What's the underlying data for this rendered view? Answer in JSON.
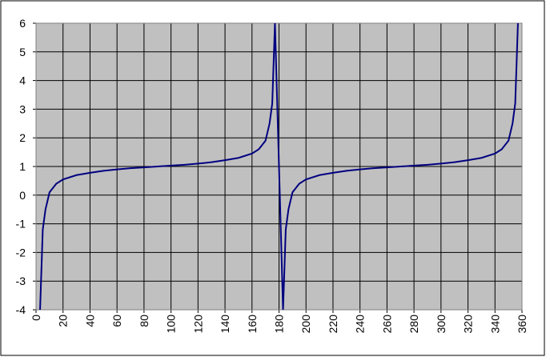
{
  "chart_data": {
    "type": "line",
    "x": [
      3,
      5,
      7,
      10,
      15,
      20,
      30,
      40,
      50,
      60,
      70,
      80,
      90,
      100,
      110,
      120,
      130,
      140,
      150,
      160,
      165,
      170,
      173,
      175,
      177,
      183,
      185,
      187,
      190,
      195,
      200,
      210,
      220,
      230,
      240,
      250,
      260,
      270,
      280,
      290,
      300,
      310,
      320,
      330,
      340,
      345,
      350,
      353,
      355,
      357
    ],
    "series": [
      {
        "color": "#000080",
        "values": [
          -4,
          -1.2,
          -0.5,
          0.1,
          0.4,
          0.55,
          0.7,
          0.78,
          0.85,
          0.9,
          0.94,
          0.97,
          1,
          1.03,
          1.06,
          1.1,
          1.15,
          1.22,
          1.3,
          1.45,
          1.6,
          1.9,
          2.5,
          3.2,
          6,
          -4,
          -1.2,
          -0.5,
          0.1,
          0.4,
          0.55,
          0.7,
          0.78,
          0.85,
          0.9,
          0.94,
          0.97,
          1,
          1.03,
          1.06,
          1.1,
          1.15,
          1.22,
          1.3,
          1.45,
          1.6,
          1.9,
          2.5,
          3.2,
          6
        ]
      }
    ],
    "xlim": [
      0,
      360
    ],
    "xticks": [
      0,
      20,
      40,
      60,
      80,
      100,
      120,
      140,
      160,
      180,
      200,
      220,
      240,
      260,
      280,
      300,
      320,
      340,
      360
    ],
    "ylim": [
      -4,
      6
    ],
    "yticks": [
      -4,
      -3,
      -2,
      -1,
      0,
      1,
      2,
      3,
      4,
      5,
      6
    ],
    "grid": true,
    "plot_background": "#c0c0c0"
  }
}
